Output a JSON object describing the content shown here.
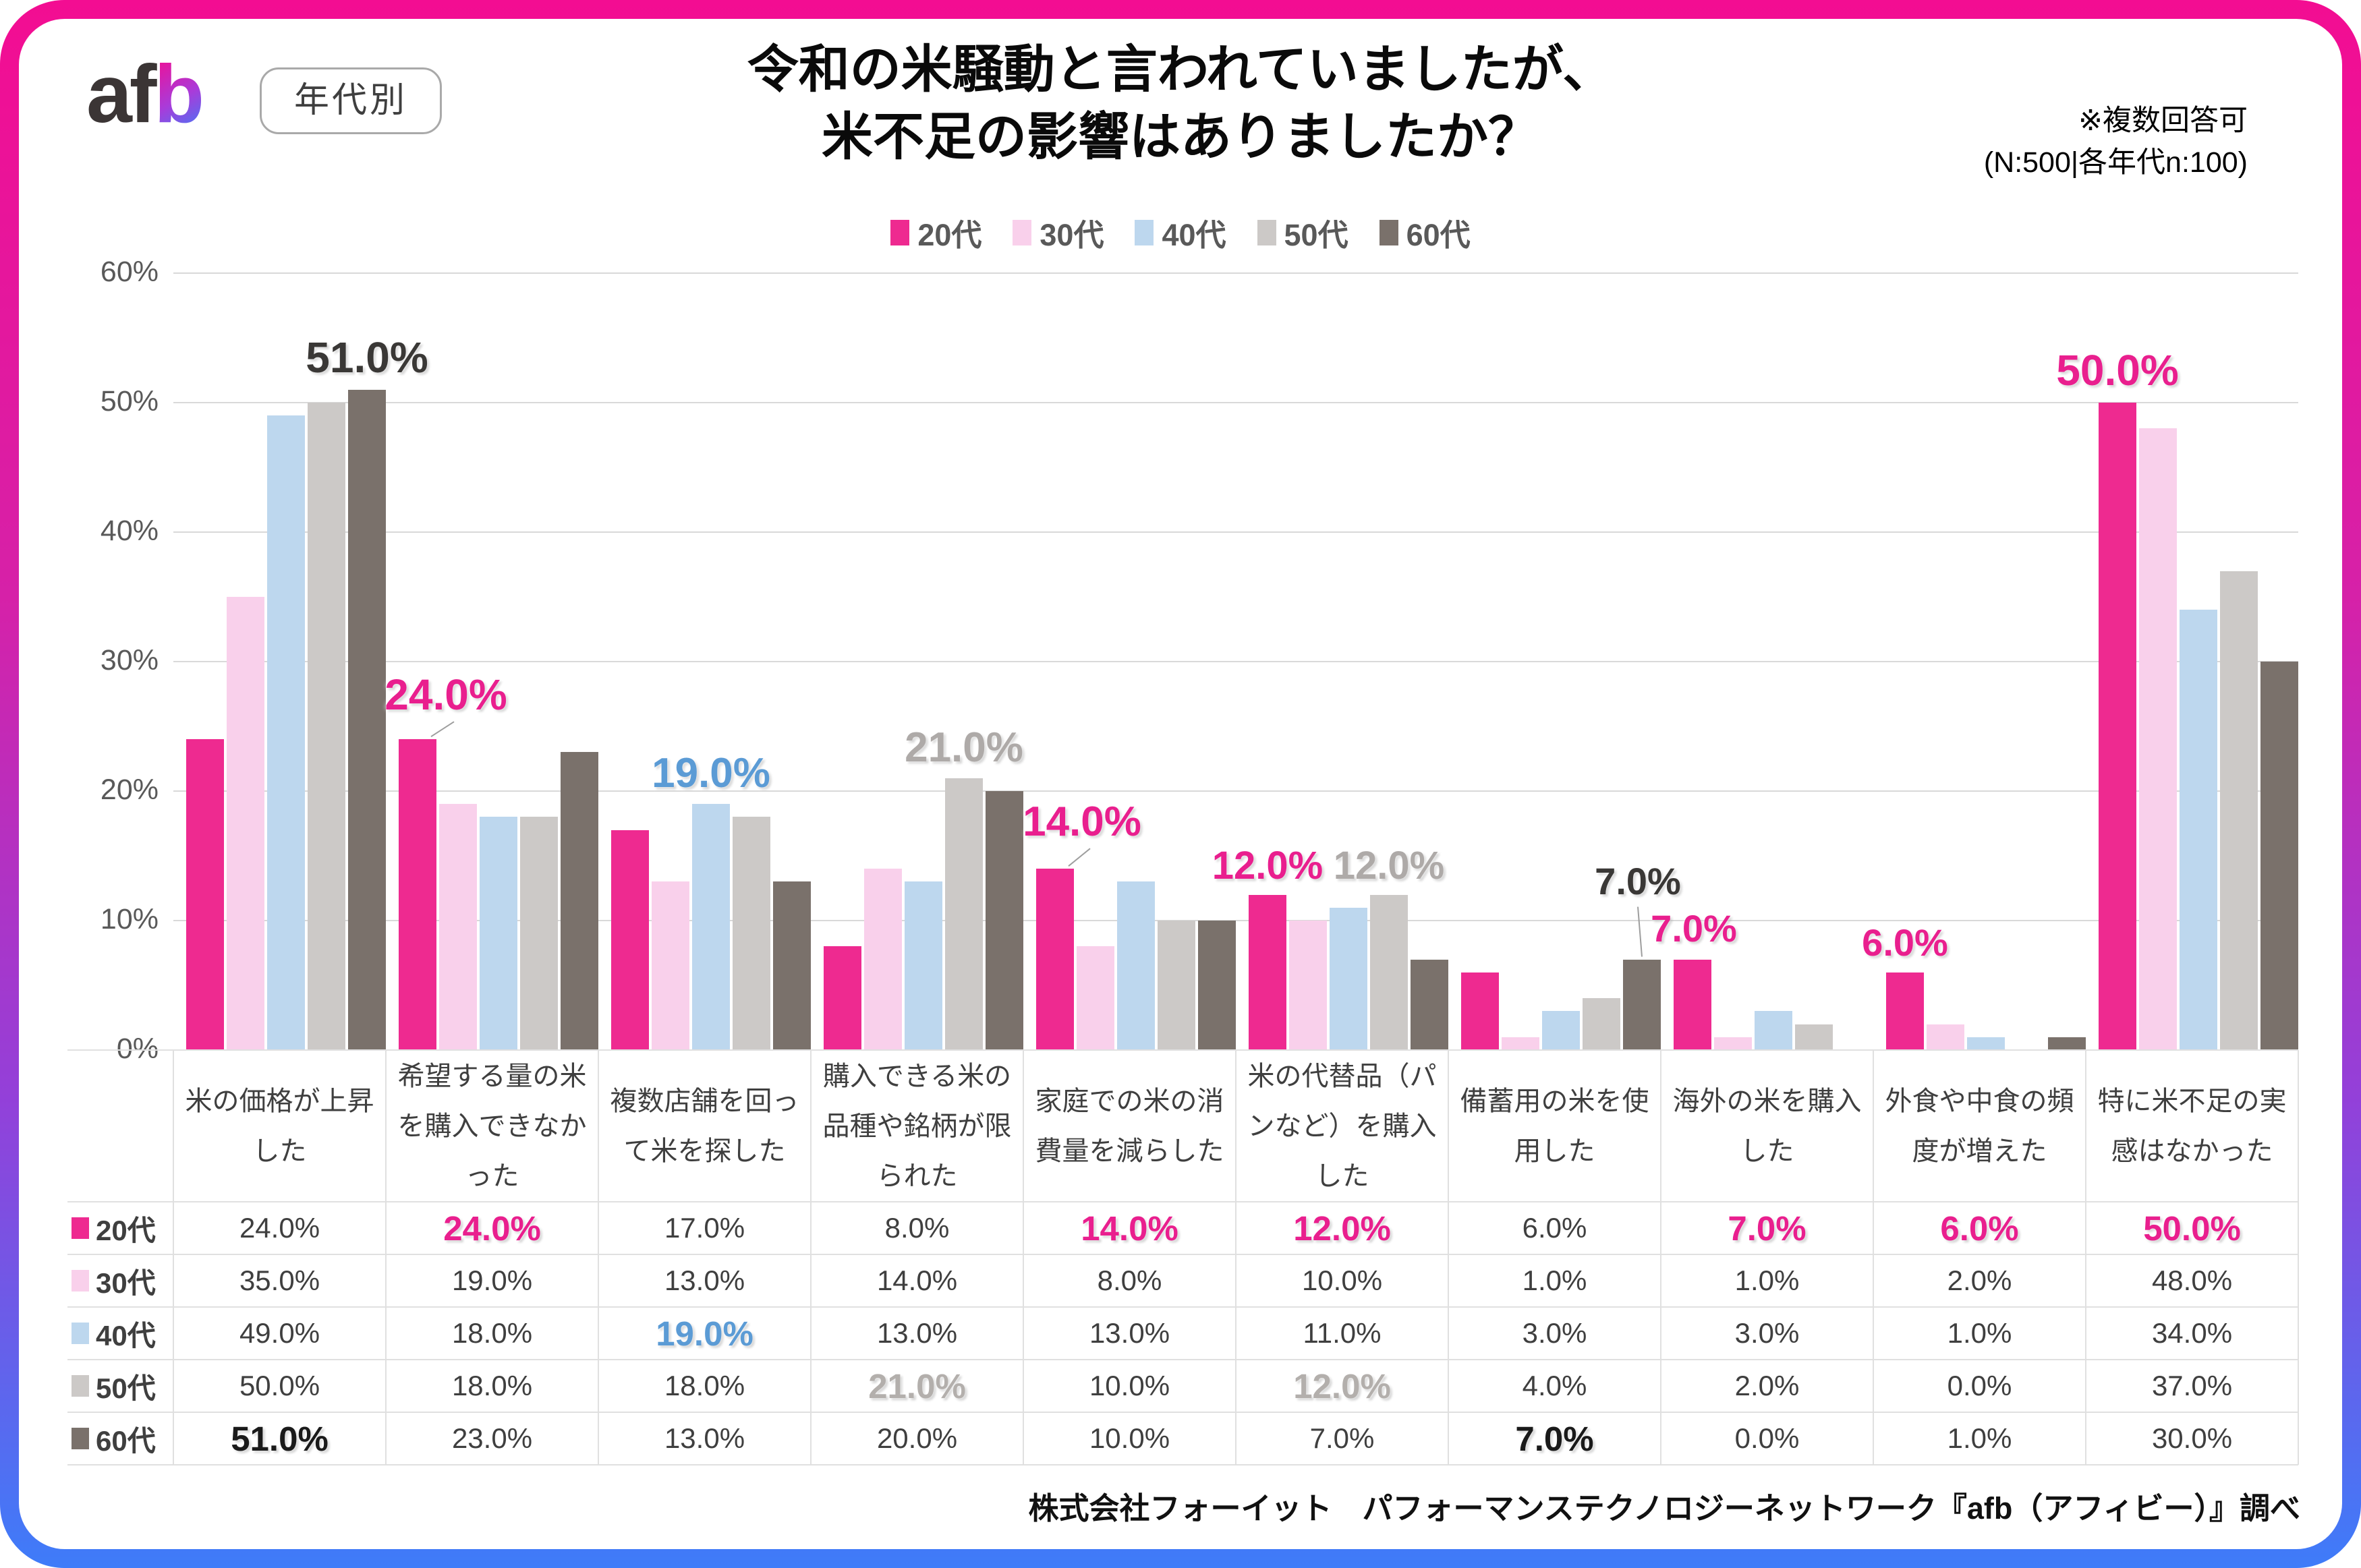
{
  "header": {
    "logo_prefix": "af",
    "logo_accent": "b",
    "badge": "年代別",
    "title_line1": "令和の米騒動と言われていましたが、",
    "title_line2": "米不足の影響はありましたか？",
    "note_line1": "※複数回答可",
    "note_line2": "(N:500|各年代n:100)"
  },
  "chart_data": {
    "type": "bar",
    "title": "令和の米騒動と言われていましたが、米不足の影響はありましたか？",
    "categories": [
      "米の価格が上昇した",
      "希望する量の米を購入できなかった",
      "複数店舗を回って米を探した",
      "購入できる米の品種や銘柄が限られた",
      "家庭での米の消費量を減らした",
      "米の代替品（パンなど）を購入した",
      "備蓄用の米を使用した",
      "海外の米を購入した",
      "外食や中食の頻度が増えた",
      "特に米不足の実感はなかった"
    ],
    "series": [
      {
        "name": "20代",
        "color": "#EE2A90",
        "values": [
          24,
          24,
          17,
          8,
          14,
          12,
          6,
          7,
          6,
          50
        ]
      },
      {
        "name": "30代",
        "color": "#F9D0EB",
        "values": [
          35,
          19,
          13,
          14,
          8,
          10,
          1,
          1,
          2,
          48
        ]
      },
      {
        "name": "40代",
        "color": "#BDD7EE",
        "values": [
          49,
          18,
          19,
          13,
          13,
          11,
          3,
          3,
          1,
          34
        ]
      },
      {
        "name": "50代",
        "color": "#CCC9C7",
        "values": [
          50,
          18,
          18,
          21,
          10,
          12,
          4,
          2,
          0,
          37
        ]
      },
      {
        "name": "60代",
        "color": "#7A716B",
        "values": [
          51,
          23,
          13,
          20,
          10,
          7,
          7,
          0,
          1,
          30
        ]
      }
    ],
    "ylim": [
      0,
      60
    ],
    "yticks": [
      "0%",
      "10%",
      "20%",
      "30%",
      "40%",
      "50%",
      "60%"
    ],
    "grid": true,
    "legend_position": "top",
    "callout_colors": {
      "pink": "#E91F8E",
      "blue": "#5B9BD5",
      "gray": "#AEAAA8",
      "dark": "#3A3836"
    },
    "callouts": [
      {
        "cat": 0,
        "series": 4,
        "text": "51.0%",
        "color": "dark",
        "dx": 0,
        "gap": 16,
        "size": 64,
        "leader": null
      },
      {
        "cat": 1,
        "series": 0,
        "text": "24.0%",
        "color": "pink",
        "dx": 42,
        "gap": 34,
        "size": 64,
        "leader": "diag"
      },
      {
        "cat": 2,
        "series": 2,
        "text": "19.0%",
        "color": "blue",
        "dx": 0,
        "gap": 14,
        "size": 62,
        "leader": null
      },
      {
        "cat": 3,
        "series": 3,
        "text": "21.0%",
        "color": "gray",
        "dx": 0,
        "gap": 14,
        "size": 62,
        "leader": null
      },
      {
        "cat": 4,
        "series": 0,
        "text": "14.0%",
        "color": "pink",
        "dx": 40,
        "gap": 38,
        "size": 62,
        "leader": "diag"
      },
      {
        "cat": 5,
        "series": 0,
        "text": "12.0%",
        "color": "pink",
        "dx": 0,
        "gap": 14,
        "size": 58,
        "leader": null
      },
      {
        "cat": 5,
        "series": 3,
        "text": "12.0%",
        "color": "gray",
        "dx": 0,
        "gap": 14,
        "size": 58,
        "leader": null
      },
      {
        "cat": 6,
        "series": 4,
        "text": "7.0%",
        "color": "dark",
        "dx": -6,
        "gap": 88,
        "size": 56,
        "leader": "vert"
      },
      {
        "cat": 7,
        "series": 0,
        "text": "7.0%",
        "color": "pink",
        "dx": 2,
        "gap": 18,
        "size": 56,
        "leader": null
      },
      {
        "cat": 8,
        "series": 0,
        "text": "6.0%",
        "color": "pink",
        "dx": 0,
        "gap": 16,
        "size": 56,
        "leader": null
      },
      {
        "cat": 9,
        "series": 0,
        "text": "50.0%",
        "color": "pink",
        "dx": 0,
        "gap": 16,
        "size": 64,
        "leader": null
      }
    ]
  },
  "table": {
    "rows": [
      {
        "label": "20代",
        "color": "#EE2A90",
        "values": [
          "24.0%",
          "24.0%",
          "17.0%",
          "8.0%",
          "14.0%",
          "12.0%",
          "6.0%",
          "7.0%",
          "6.0%",
          "50.0%"
        ]
      },
      {
        "label": "30代",
        "color": "#F9D0EB",
        "values": [
          "35.0%",
          "19.0%",
          "13.0%",
          "14.0%",
          "8.0%",
          "10.0%",
          "1.0%",
          "1.0%",
          "2.0%",
          "48.0%"
        ]
      },
      {
        "label": "40代",
        "color": "#BDD7EE",
        "values": [
          "49.0%",
          "18.0%",
          "19.0%",
          "13.0%",
          "13.0%",
          "11.0%",
          "3.0%",
          "3.0%",
          "1.0%",
          "34.0%"
        ]
      },
      {
        "label": "50代",
        "color": "#CCC9C7",
        "values": [
          "50.0%",
          "18.0%",
          "18.0%",
          "21.0%",
          "10.0%",
          "12.0%",
          "4.0%",
          "2.0%",
          "0.0%",
          "37.0%"
        ]
      },
      {
        "label": "60代",
        "color": "#7A716B",
        "values": [
          "51.0%",
          "23.0%",
          "13.0%",
          "20.0%",
          "10.0%",
          "7.0%",
          "7.0%",
          "0.0%",
          "1.0%",
          "30.0%"
        ]
      }
    ],
    "highlight_colors": {
      "pink": "#E91F8E",
      "blue": "#5B9BD5",
      "gray": "#B3AFAC",
      "black": "#1A1A1A"
    },
    "highlights": [
      {
        "row": 0,
        "col": 1,
        "color": "pink"
      },
      {
        "row": 0,
        "col": 4,
        "color": "pink"
      },
      {
        "row": 0,
        "col": 5,
        "color": "pink"
      },
      {
        "row": 0,
        "col": 7,
        "color": "pink"
      },
      {
        "row": 0,
        "col": 8,
        "color": "pink"
      },
      {
        "row": 0,
        "col": 9,
        "color": "pink"
      },
      {
        "row": 2,
        "col": 2,
        "color": "blue"
      },
      {
        "row": 3,
        "col": 3,
        "color": "gray"
      },
      {
        "row": 3,
        "col": 5,
        "color": "gray"
      },
      {
        "row": 4,
        "col": 0,
        "color": "black"
      },
      {
        "row": 4,
        "col": 6,
        "color": "black"
      }
    ]
  },
  "footer": {
    "source": "株式会社フォーイット　パフォーマンステクノロジーネットワーク『afb（アフィビー）』調べ"
  }
}
